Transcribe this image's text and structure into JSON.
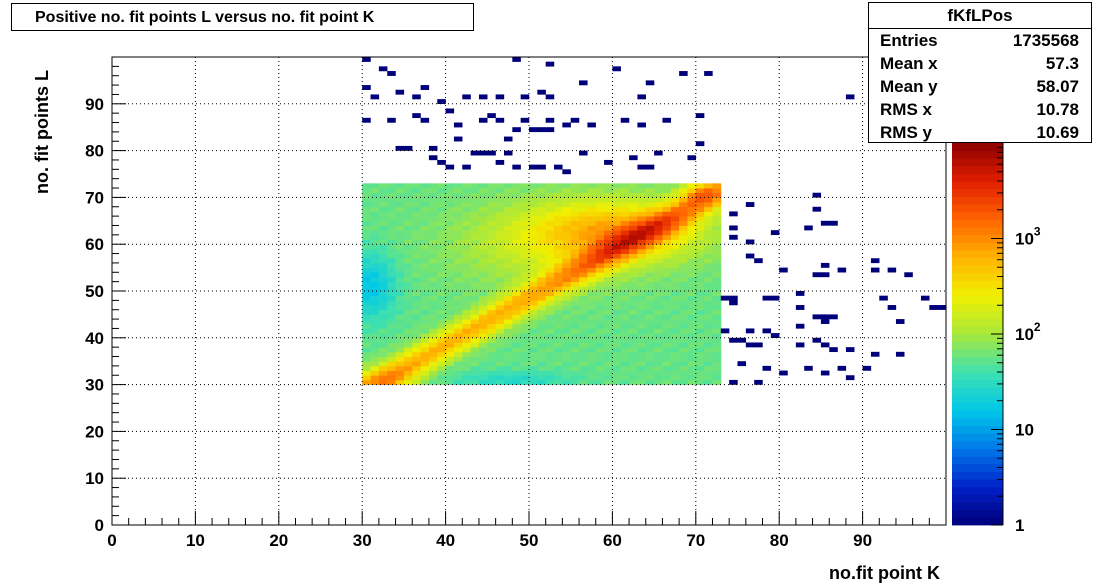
{
  "title": "Positive no. fit points L versus no. fit point K",
  "stats": {
    "name": "fKfLPos",
    "rows": [
      {
        "label": "Entries",
        "value": "1735568"
      },
      {
        "label": "Mean x",
        "value": "57.3"
      },
      {
        "label": "Mean y",
        "value": "58.07"
      },
      {
        "label": "RMS x",
        "value": "10.78"
      },
      {
        "label": "RMS y",
        "value": "10.69"
      }
    ]
  },
  "chart_data": {
    "type": "heatmap",
    "title": "Positive no. fit points L versus no. fit point K",
    "xlabel": "no.fit point K",
    "ylabel": "no. fit points  L",
    "xlim": [
      0,
      100
    ],
    "ylim": [
      0,
      100
    ],
    "x_ticks": [
      0,
      10,
      20,
      30,
      40,
      50,
      60,
      70,
      80,
      90
    ],
    "y_ticks": [
      0,
      10,
      20,
      30,
      40,
      50,
      60,
      70,
      80,
      90
    ],
    "grid": true,
    "z_scale": "log",
    "z_range": [
      1,
      10000
    ],
    "z_ticks": [
      {
        "value": 1,
        "label": "1"
      },
      {
        "value": 10,
        "label": "10"
      },
      {
        "value": 100,
        "label": "10^2"
      },
      {
        "value": 1000,
        "label": "10^3"
      }
    ],
    "palette": [
      "#00007a",
      "#0021c8",
      "#0078e8",
      "#00c8e8",
      "#3ee0b0",
      "#a8e83c",
      "#f0f000",
      "#ffb400",
      "#ff6400",
      "#e01e00",
      "#8c0000"
    ],
    "dense_region": {
      "x_range": [
        30,
        73
      ],
      "y_range": [
        30,
        73
      ]
    },
    "sparse_points": [
      [
        30,
        99
      ],
      [
        32,
        97
      ],
      [
        33,
        96
      ],
      [
        30,
        93
      ],
      [
        31,
        91
      ],
      [
        34,
        92
      ],
      [
        37,
        93
      ],
      [
        36,
        91
      ],
      [
        39,
        90
      ],
      [
        42,
        91
      ],
      [
        44,
        91
      ],
      [
        46,
        91
      ],
      [
        49,
        91
      ],
      [
        51,
        92
      ],
      [
        52,
        91
      ],
      [
        48,
        99
      ],
      [
        52,
        98
      ],
      [
        56,
        94
      ],
      [
        60,
        97
      ],
      [
        63,
        91
      ],
      [
        64,
        94
      ],
      [
        68,
        96
      ],
      [
        71,
        96
      ],
      [
        88,
        91
      ],
      [
        30,
        86
      ],
      [
        33,
        86
      ],
      [
        36,
        87
      ],
      [
        37,
        86
      ],
      [
        40,
        88
      ],
      [
        41,
        85
      ],
      [
        44,
        86
      ],
      [
        45,
        87
      ],
      [
        46,
        86
      ],
      [
        49,
        86
      ],
      [
        50,
        84
      ],
      [
        52,
        86
      ],
      [
        54,
        85
      ],
      [
        55,
        86
      ],
      [
        57,
        85
      ],
      [
        61,
        86
      ],
      [
        63,
        85
      ],
      [
        66,
        86
      ],
      [
        70,
        87
      ],
      [
        47,
        82
      ],
      [
        48,
        84
      ],
      [
        51,
        84
      ],
      [
        52,
        84
      ],
      [
        34,
        80
      ],
      [
        35,
        80
      ],
      [
        38,
        80
      ],
      [
        41,
        82
      ],
      [
        38,
        78
      ],
      [
        39,
        77
      ],
      [
        40,
        76
      ],
      [
        42,
        76
      ],
      [
        43,
        79
      ],
      [
        44,
        79
      ],
      [
        45,
        79
      ],
      [
        46,
        77
      ],
      [
        47,
        79
      ],
      [
        48,
        76
      ],
      [
        50,
        76
      ],
      [
        51,
        76
      ],
      [
        56,
        79
      ],
      [
        59,
        77
      ],
      [
        62,
        78
      ],
      [
        65,
        79
      ],
      [
        69,
        78
      ],
      [
        70,
        81
      ],
      [
        63,
        76
      ],
      [
        64,
        76
      ],
      [
        53,
        76
      ],
      [
        54,
        75
      ],
      [
        74,
        66
      ],
      [
        74,
        63
      ],
      [
        74,
        61
      ],
      [
        76,
        60
      ],
      [
        76,
        68
      ],
      [
        79,
        62
      ],
      [
        83,
        63
      ],
      [
        84,
        70
      ],
      [
        84,
        67
      ],
      [
        85,
        64
      ],
      [
        86,
        64
      ],
      [
        76,
        57
      ],
      [
        77,
        56
      ],
      [
        80,
        54
      ],
      [
        84,
        53
      ],
      [
        85,
        53
      ],
      [
        85,
        55
      ],
      [
        87,
        54
      ],
      [
        91,
        56
      ],
      [
        91,
        54
      ],
      [
        93,
        54
      ],
      [
        95,
        53
      ],
      [
        73,
        48
      ],
      [
        74,
        48
      ],
      [
        74,
        47
      ],
      [
        78,
        48
      ],
      [
        79,
        48
      ],
      [
        82,
        49
      ],
      [
        82,
        46
      ],
      [
        84,
        44
      ],
      [
        85,
        44
      ],
      [
        86,
        44
      ],
      [
        85,
        43
      ],
      [
        92,
        48
      ],
      [
        93,
        46
      ],
      [
        94,
        43
      ],
      [
        97,
        48
      ],
      [
        98,
        46
      ],
      [
        99,
        46
      ],
      [
        73,
        41
      ],
      [
        76,
        41
      ],
      [
        78,
        41
      ],
      [
        79,
        40
      ],
      [
        82,
        42
      ],
      [
        84,
        39
      ],
      [
        74,
        39
      ],
      [
        75,
        39
      ],
      [
        76,
        38
      ],
      [
        77,
        38
      ],
      [
        82,
        38
      ],
      [
        85,
        38
      ],
      [
        88,
        37
      ],
      [
        91,
        36
      ],
      [
        94,
        36
      ],
      [
        86,
        37
      ],
      [
        75,
        34
      ],
      [
        78,
        33
      ],
      [
        80,
        32
      ],
      [
        83,
        33
      ],
      [
        85,
        32
      ],
      [
        87,
        33
      ],
      [
        88,
        31
      ],
      [
        90,
        33
      ],
      [
        74,
        30
      ],
      [
        77,
        30
      ]
    ]
  }
}
